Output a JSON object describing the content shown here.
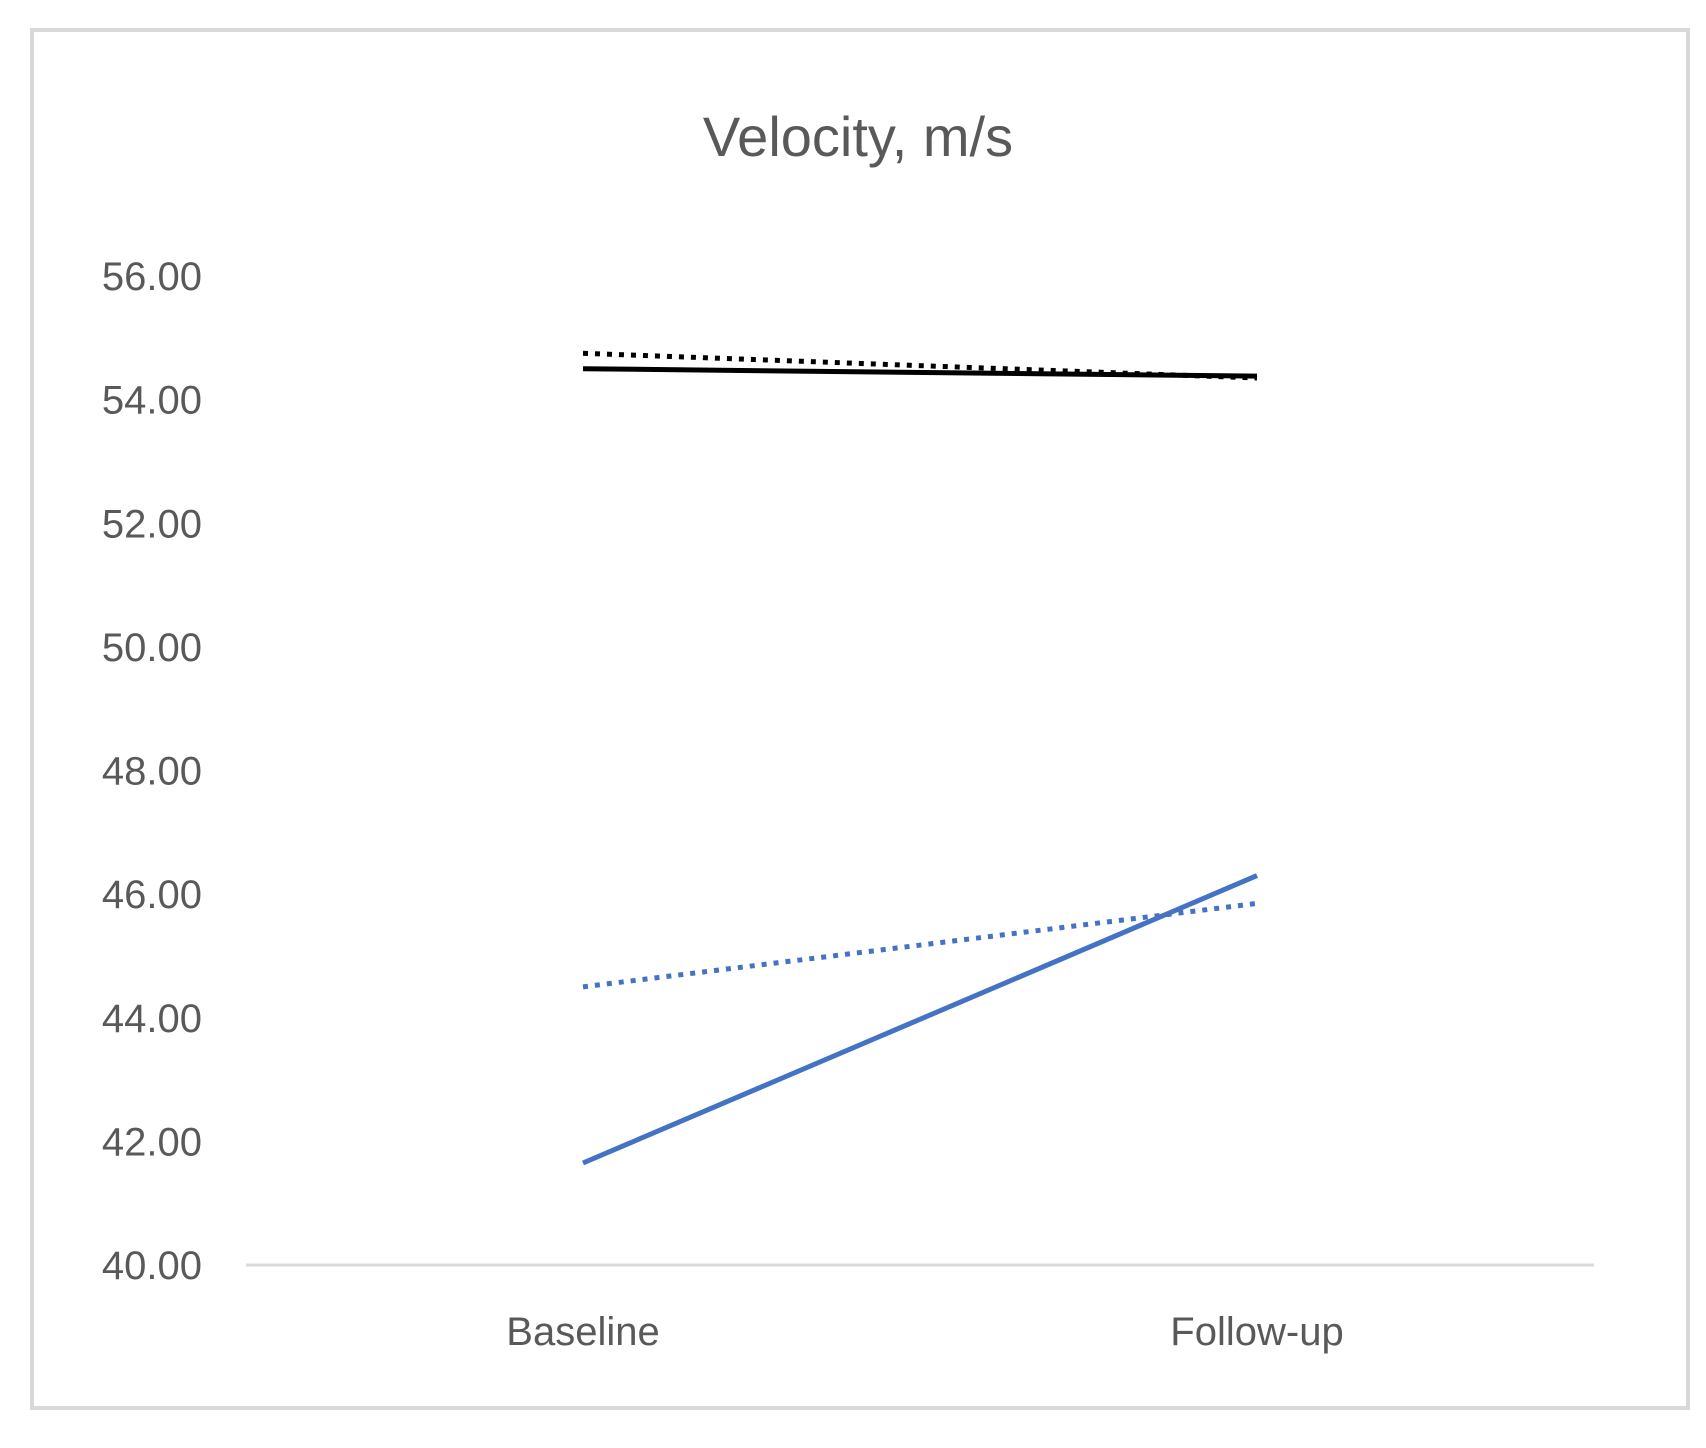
{
  "chart_data": {
    "type": "line",
    "title": "Velocity, m/s",
    "xlabel": "",
    "ylabel": "",
    "categories": [
      "Baseline",
      "Follow-up"
    ],
    "ylim": [
      40,
      56
    ],
    "yticks": [
      "40.00",
      "42.00",
      "44.00",
      "46.00",
      "48.00",
      "50.00",
      "52.00",
      "54.00",
      "56.00"
    ],
    "grid": false,
    "legend": "none",
    "series": [
      {
        "values": [
          54.5,
          54.38
        ],
        "color": "#000000",
        "style": "solid"
      },
      {
        "values": [
          54.75,
          54.35
        ],
        "color": "#000000",
        "style": "dotted"
      },
      {
        "values": [
          41.65,
          46.3
        ],
        "color": "#4472c4",
        "style": "solid"
      },
      {
        "values": [
          44.5,
          45.85
        ],
        "color": "#4472c4",
        "style": "dotted"
      }
    ]
  }
}
